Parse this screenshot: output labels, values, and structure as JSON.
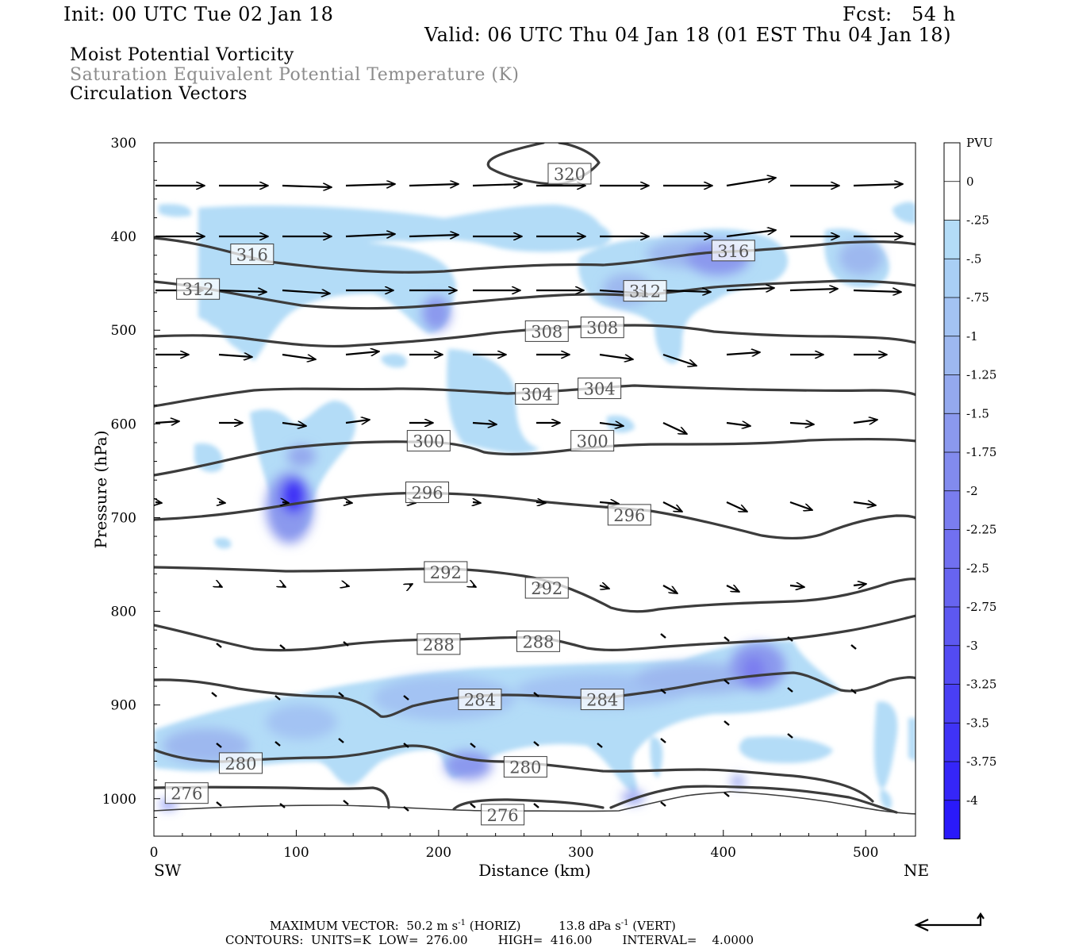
{
  "header": {
    "init": "Init: 00 UTC Tue 02 Jan 18",
    "fcst": "Fcst:   54 h",
    "valid": "Valid: 06 UTC Thu 04 Jan 18 (01 EST Thu 04 Jan 18)",
    "field1": "Moist Potential Vorticity",
    "field2": "Saturation Equivalent Potential Temperature (K)",
    "field3": "Circulation Vectors"
  },
  "footer": {
    "max_vector_prefix": "MAXIMUM VECTOR:  50.2 m s",
    "max_vector_horiz_suffix": " (HORIZ)",
    "max_vector_vert_prefix": "13.8 dPa s",
    "max_vector_vert_suffix": " (VERT)",
    "exponent": "-1",
    "contours": "CONTOURS:  UNITS=K  LOW=  276.00        HIGH=  416.00        INTERVAL=    4.0000"
  },
  "colors": {
    "contour": "#3c3c3c",
    "pv_light": "#b3dcf7",
    "pv_mid": "#9db8ef",
    "pv_dark": "#5d6df0",
    "pv_max": "#1a1aff"
  },
  "chart_data": {
    "type": "cross-section",
    "xlabel": "Distance (km)",
    "ylabel": "Pressure (hPa)",
    "x_end_labels": [
      "SW",
      "NE"
    ],
    "xlim": [
      0,
      535
    ],
    "ylim": [
      300,
      1040
    ],
    "x_ticks": [
      "0",
      "100",
      "200",
      "300",
      "400",
      "500"
    ],
    "y_ticks": [
      "300",
      "400",
      "500",
      "600",
      "700",
      "800",
      "900",
      "1000"
    ],
    "colorbar": {
      "units": "PVU",
      "labels": [
        "0",
        "-.25",
        "-.5",
        "-.75",
        "-1",
        "-1.25",
        "-1.5",
        "-1.75",
        "-2",
        "-2.25",
        "-2.5",
        "-2.75",
        "-3",
        "-3.25",
        "-3.5",
        "-3.75",
        "-4"
      ],
      "colors": [
        "#ffffff",
        "#ffffff",
        "#b3dcf7",
        "#a9cff5",
        "#a3c3f3",
        "#9db8ef",
        "#94a9ee",
        "#8b99ee",
        "#828bee",
        "#7a7def",
        "#7170f0",
        "#6764f0",
        "#5d58f1",
        "#534bf3",
        "#493ff4",
        "#3f33f6",
        "#3526f8",
        "#2a1afa"
      ]
    },
    "contour_labels": [
      {
        "text": "320",
        "x": 292,
        "p": 333
      },
      {
        "text": "316",
        "x": 69,
        "p": 419
      },
      {
        "text": "316",
        "x": 407,
        "p": 415
      },
      {
        "text": "312",
        "x": 31,
        "p": 456
      },
      {
        "text": "312",
        "x": 345,
        "p": 458
      },
      {
        "text": "308",
        "x": 276,
        "p": 501
      },
      {
        "text": "308",
        "x": 315,
        "p": 497
      },
      {
        "text": "304",
        "x": 269,
        "p": 568
      },
      {
        "text": "304",
        "x": 313,
        "p": 562
      },
      {
        "text": "300",
        "x": 193,
        "p": 618
      },
      {
        "text": "300",
        "x": 308,
        "p": 618
      },
      {
        "text": "296",
        "x": 192,
        "p": 673
      },
      {
        "text": "296",
        "x": 334,
        "p": 697
      },
      {
        "text": "292",
        "x": 205,
        "p": 758
      },
      {
        "text": "292",
        "x": 276,
        "p": 775
      },
      {
        "text": "288",
        "x": 200,
        "p": 835
      },
      {
        "text": "288",
        "x": 270,
        "p": 832
      },
      {
        "text": "284",
        "x": 229,
        "p": 894
      },
      {
        "text": "284",
        "x": 315,
        "p": 894
      },
      {
        "text": "280",
        "x": 61,
        "p": 962
      },
      {
        "text": "280",
        "x": 261,
        "p": 966
      },
      {
        "text": "276",
        "x": 23,
        "p": 994
      },
      {
        "text": "276",
        "x": 245,
        "p": 1017
      }
    ]
  }
}
